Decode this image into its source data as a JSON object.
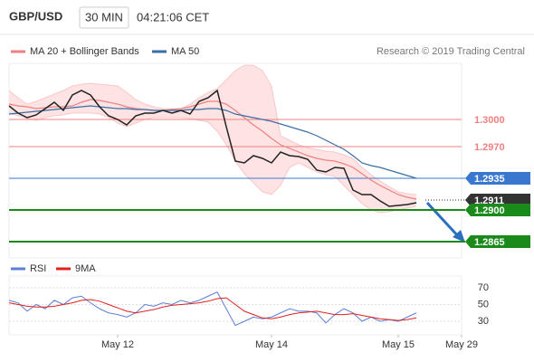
{
  "header": {
    "title": "GBP/USD",
    "interval": "30 MIN",
    "time": "04:21:06 CET"
  },
  "source": "Research © 2019 Trading Central",
  "chart_data": [
    {
      "type": "line",
      "xlim": [
        0,
        50
      ],
      "ylim": [
        1.2847,
        1.3062
      ],
      "price": {
        "color": "#222222",
        "values": [
          1.3015,
          1.3007,
          1.3002,
          1.3005,
          1.3012,
          1.3019,
          1.301,
          1.3027,
          1.3032,
          1.3027,
          1.3014,
          1.3004,
          1.3,
          1.2994,
          1.3004,
          1.3007,
          1.3007,
          1.301,
          1.3007,
          1.301,
          1.3006,
          1.302,
          1.3024,
          1.3032,
          1.2992,
          1.2954,
          1.2952,
          1.296,
          1.2957,
          1.2952,
          1.2964,
          1.296,
          1.2959,
          1.2956,
          1.2944,
          1.2942,
          1.2947,
          1.2946,
          1.2922,
          1.2917,
          1.2917,
          1.291,
          1.2904,
          1.2905,
          1.2906,
          1.2908
        ]
      },
      "series": [
        {
          "name": "MA 20 + Bollinger Bands",
          "color": "#f08080",
          "band_fill": "#fde3e3",
          "values": [
            1.3017,
            1.3015,
            1.3014,
            1.3012,
            1.3013,
            1.3014,
            1.3014,
            1.3015,
            1.3019,
            1.3022,
            1.3021,
            1.3019,
            1.3017,
            1.3014,
            1.3012,
            1.3011,
            1.301,
            1.301,
            1.3011,
            1.3012,
            1.3014,
            1.3017,
            1.302,
            1.302,
            1.3017,
            1.301,
            1.3002,
            1.2994,
            1.2987,
            1.2979,
            1.2972,
            1.2968,
            1.2964,
            1.296,
            1.2957,
            1.2955,
            1.2954,
            1.2951,
            1.2947,
            1.294,
            1.2933,
            1.2927,
            1.2922,
            1.2917,
            1.2914,
            1.2912
          ],
          "upper": [
            1.3032,
            1.3024,
            1.3017,
            1.302,
            1.3024,
            1.3028,
            1.3032,
            1.3037,
            1.3039,
            1.304,
            1.3039,
            1.3038,
            1.3037,
            1.303,
            1.3022,
            1.3017,
            1.3014,
            1.3012,
            1.3012,
            1.3012,
            1.3017,
            1.3024,
            1.303,
            1.3034,
            1.3044,
            1.3054,
            1.306,
            1.306,
            1.3054,
            1.3037,
            1.2982,
            1.2977,
            1.2972,
            1.2969,
            1.2967,
            1.2965,
            1.2964,
            1.2961,
            1.2957,
            1.2947,
            1.2939,
            1.2932,
            1.2926,
            1.292,
            1.2918,
            1.2917
          ],
          "lower": [
            1.3007,
            1.3004,
            1.3001,
            1.2999,
            1.3002,
            1.3004,
            1.3005,
            1.3007,
            1.3007,
            1.3007,
            1.3006,
            1.3002,
            1.2996,
            1.2992,
            1.2996,
            1.3,
            1.3002,
            1.3002,
            1.3002,
            1.3002,
            1.3001,
            1.2999,
            1.2997,
            1.2987,
            1.2972,
            1.2954,
            1.294,
            1.293,
            1.292,
            1.2917,
            1.2927,
            1.2947,
            1.2952,
            1.2947,
            1.2942,
            1.2939,
            1.2937,
            1.2927,
            1.2917,
            1.2907,
            1.29,
            1.2897,
            1.2898,
            1.29,
            1.2902,
            1.2904
          ]
        },
        {
          "name": "MA 50",
          "color": "#3a6ea5",
          "values": [
            1.3006,
            1.3007,
            1.3008,
            1.3009,
            1.301,
            1.3011,
            1.3012,
            1.3013,
            1.3014,
            1.3015,
            1.3014,
            1.3013,
            1.3012,
            1.3012,
            1.3011,
            1.3011,
            1.301,
            1.301,
            1.301,
            1.301,
            1.3011,
            1.3011,
            1.3012,
            1.3012,
            1.301,
            1.3006,
            1.3004,
            1.3002,
            1.3,
            1.2998,
            1.2995,
            1.2992,
            1.2989,
            1.2986,
            1.2982,
            1.2977,
            1.2972,
            1.2967,
            1.296,
            1.2952,
            1.2949,
            1.2947,
            1.2944,
            1.2941,
            1.2938,
            1.2935
          ]
        }
      ],
      "levels": [
        {
          "value": 1.3,
          "label": "1.3000",
          "color": "#f08080",
          "box": false,
          "width": 1
        },
        {
          "value": 1.297,
          "label": "1.2970",
          "color": "#f08080",
          "box": false,
          "width": 1
        },
        {
          "value": 1.2935,
          "label": "1.2935",
          "color": "#3a78d0",
          "box": true,
          "width": 1
        },
        {
          "value": 1.2911,
          "label": "1.2911",
          "color": "#333333",
          "box": true,
          "width": 1,
          "dotted": true
        },
        {
          "value": 1.29,
          "label": "1.2900",
          "color": "#1a8a1a",
          "box": true,
          "width": 2
        },
        {
          "value": 1.2865,
          "label": "1.2865",
          "color": "#1a8a1a",
          "box": true,
          "width": 2
        }
      ]
    },
    {
      "type": "line",
      "xlim": [
        0,
        50
      ],
      "ylim": [
        20,
        80
      ],
      "yticks": [
        70,
        50,
        30
      ],
      "xticks": [
        {
          "value": 12,
          "label": "May 12"
        },
        {
          "value": 29,
          "label": "May 14"
        },
        {
          "value": 43,
          "label": "May 15"
        },
        {
          "value": 50,
          "label": "May 29"
        }
      ],
      "series": [
        {
          "name": "RSI",
          "color": "#5b7fd6",
          "values": [
            55,
            52,
            42,
            50,
            45,
            55,
            50,
            58,
            60,
            52,
            45,
            40,
            38,
            35,
            40,
            50,
            48,
            52,
            50,
            55,
            52,
            55,
            60,
            65,
            45,
            25,
            30,
            35,
            33,
            35,
            40,
            45,
            42,
            42,
            40,
            28,
            38,
            45,
            40,
            30,
            35,
            30,
            32,
            30,
            35,
            40
          ]
        },
        {
          "name": "9MA",
          "color": "#e02020",
          "values": [
            52,
            50,
            48,
            47,
            47,
            48,
            50,
            52,
            55,
            56,
            54,
            50,
            46,
            42,
            40,
            42,
            44,
            47,
            49,
            50,
            51,
            52,
            54,
            57,
            58,
            50,
            42,
            38,
            34,
            33,
            35,
            38,
            40,
            41,
            42,
            40,
            38,
            38,
            39,
            37,
            35,
            33,
            32,
            31,
            32,
            34
          ]
        }
      ]
    }
  ]
}
